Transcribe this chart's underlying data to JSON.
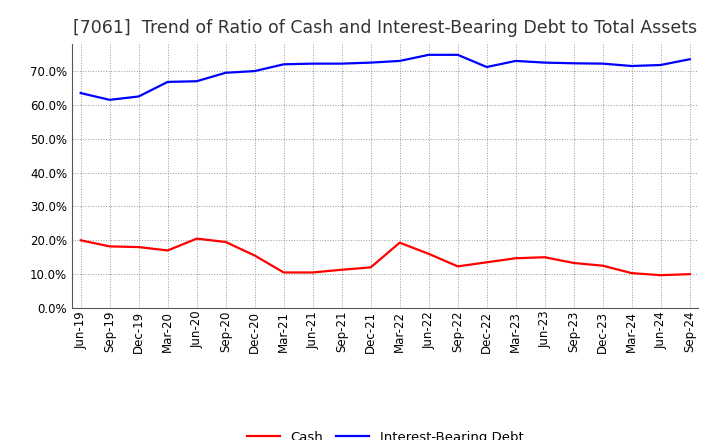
{
  "title": "[7061]  Trend of Ratio of Cash and Interest-Bearing Debt to Total Assets",
  "labels": [
    "Jun-19",
    "Sep-19",
    "Dec-19",
    "Mar-20",
    "Jun-20",
    "Sep-20",
    "Dec-20",
    "Mar-21",
    "Jun-21",
    "Sep-21",
    "Dec-21",
    "Mar-22",
    "Jun-22",
    "Sep-22",
    "Dec-22",
    "Mar-23",
    "Jun-23",
    "Sep-23",
    "Dec-23",
    "Mar-24",
    "Jun-24",
    "Sep-24"
  ],
  "cash": [
    0.2,
    0.182,
    0.18,
    0.17,
    0.205,
    0.195,
    0.155,
    0.105,
    0.105,
    0.113,
    0.12,
    0.193,
    0.16,
    0.123,
    0.135,
    0.147,
    0.15,
    0.133,
    0.125,
    0.103,
    0.097,
    0.1
  ],
  "interest_bearing_debt": [
    0.635,
    0.615,
    0.625,
    0.668,
    0.67,
    0.695,
    0.7,
    0.72,
    0.722,
    0.722,
    0.725,
    0.73,
    0.748,
    0.748,
    0.712,
    0.73,
    0.725,
    0.723,
    0.722,
    0.715,
    0.718,
    0.735
  ],
  "cash_color": "#FF0000",
  "debt_color": "#0000FF",
  "background_color": "#FFFFFF",
  "plot_bg_color": "#FFFFFF",
  "grid_color": "#999999",
  "ylim": [
    0.0,
    0.78
  ],
  "yticks": [
    0.0,
    0.1,
    0.2,
    0.3,
    0.4,
    0.5,
    0.6,
    0.7
  ],
  "legend_cash": "Cash",
  "legend_debt": "Interest-Bearing Debt",
  "title_fontsize": 12.5,
  "tick_fontsize": 8.5,
  "legend_fontsize": 9.5,
  "line_width": 1.6
}
